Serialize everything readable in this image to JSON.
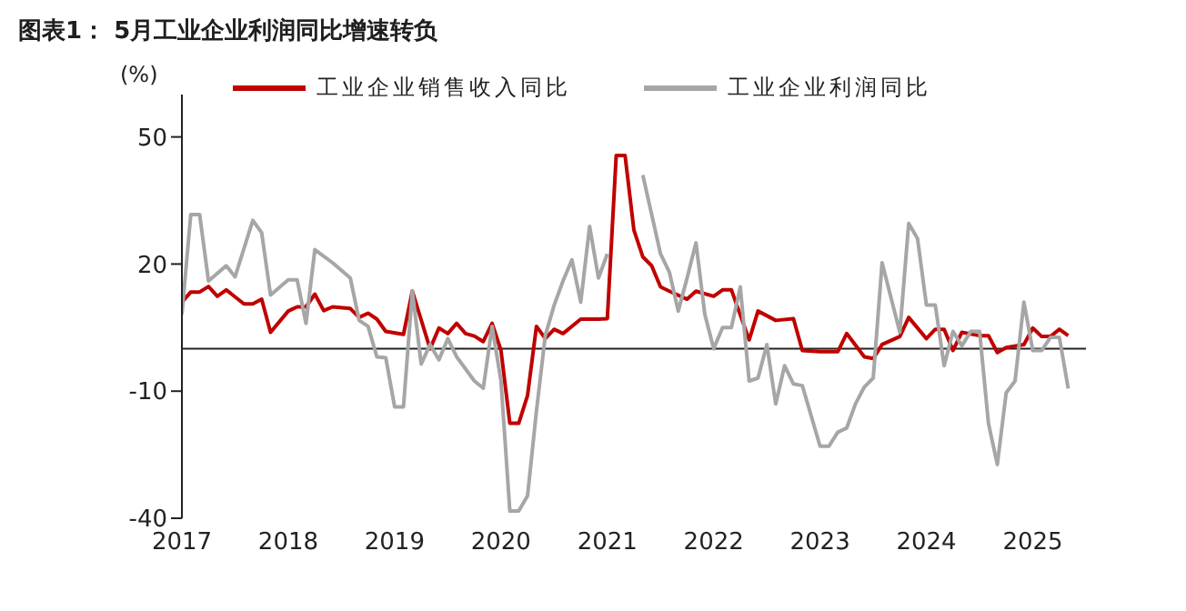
{
  "chart_data": {
    "type": "line",
    "title": "图表1： 5月工业企业利润同比增速转负",
    "ylabel": "(%)",
    "xlim": [
      "2017-01",
      "2025-07"
    ],
    "xticks": [
      {
        "value": "2017-01",
        "label": "2017"
      },
      {
        "value": "2018-01",
        "label": "2018"
      },
      {
        "value": "2019-01",
        "label": "2019"
      },
      {
        "value": "2020-01",
        "label": "2020"
      },
      {
        "value": "2021-01",
        "label": "2021"
      },
      {
        "value": "2022-01",
        "label": "2022"
      },
      {
        "value": "2023-01",
        "label": "2023"
      },
      {
        "value": "2024-01",
        "label": "2024"
      },
      {
        "value": "2025-01",
        "label": "2025"
      }
    ],
    "ylim": [
      -40,
      60
    ],
    "yticks": [
      -40,
      -10,
      20,
      50
    ],
    "grid": false,
    "legend": "top",
    "marker": "none",
    "line_style": "solid",
    "series": [
      {
        "name": "工业企业销售收入同比",
        "color": "#c00000",
        "x": [
          "2017-01",
          "2017-02",
          "2017-03",
          "2017-04",
          "2017-05",
          "2017-06",
          "2017-08",
          "2017-09",
          "2017-10",
          "2017-11",
          "2018-01",
          "2018-02",
          "2018-03",
          "2018-04",
          "2018-05",
          "2018-06",
          "2018-08",
          "2018-09",
          "2018-10",
          "2018-11",
          "2018-12",
          "2019-02",
          "2019-03",
          "2019-05",
          "2019-06",
          "2019-07",
          "2019-08",
          "2019-09",
          "2019-10",
          "2019-11",
          "2019-12",
          "2020-01",
          "2020-02",
          "2020-03",
          "2020-04",
          "2020-05",
          "2020-06",
          "2020-07",
          "2020-08",
          "2020-10",
          "2020-12",
          "2021-01",
          "2021-02",
          "2021-03",
          "2021-04",
          "2021-05",
          "2021-06",
          "2021-07",
          "2021-08",
          "2021-10",
          "2021-11",
          "2022-01",
          "2022-02",
          "2022-03",
          "2022-05",
          "2022-06",
          "2022-08",
          "2022-10",
          "2022-11",
          "2023-01",
          "2023-03",
          "2023-04",
          "2023-06",
          "2023-07",
          "2023-08",
          "2023-10",
          "2023-11",
          "2024-01",
          "2024-02",
          "2024-03",
          "2024-04",
          "2024-05",
          "2024-07",
          "2024-08",
          "2024-09",
          "2024-10",
          "2024-12",
          "2025-01",
          "2025-02",
          "2025-03",
          "2025-04",
          "2025-05"
        ],
        "values": [
          11,
          13.4,
          13.4,
          14.7,
          12.4,
          13.9,
          10.6,
          10.6,
          11.7,
          3.9,
          8.9,
          9.9,
          9.9,
          12.9,
          9,
          9.9,
          9.5,
          7.4,
          8.4,
          7,
          4.1,
          3.4,
          13.6,
          0,
          4.9,
          3.6,
          6,
          3.6,
          3,
          1.7,
          6,
          -0.4,
          -17.6,
          -17.6,
          -11,
          5.3,
          2.4,
          4.6,
          3.6,
          7,
          7,
          7.1,
          45.6,
          45.6,
          28,
          21.7,
          19.6,
          14.6,
          13.6,
          11.7,
          13.6,
          12.4,
          13.9,
          13.9,
          2.1,
          8.9,
          6.7,
          7.1,
          -0.4,
          -0.7,
          -0.7,
          3.6,
          -1.9,
          -2.3,
          1,
          2.9,
          7.4,
          2.4,
          4.6,
          4.6,
          -0.4,
          3.9,
          3.1,
          3.1,
          -0.9,
          0.3,
          1,
          4.9,
          2.9,
          2.9,
          4.6,
          3.1
        ]
      },
      {
        "name": "工业企业利润同比",
        "color": "#a6a6a6",
        "x": [
          "2017-01",
          "2017-02",
          "2017-03",
          "2017-04",
          "2017-06",
          "2017-07",
          "2017-09",
          "2017-10",
          "2017-11",
          "2018-01",
          "2018-02",
          "2018-03",
          "2018-04",
          "2018-06",
          "2018-08",
          "2018-09",
          "2018-10",
          "2018-11",
          "2018-12",
          "2019-01",
          "2019-02",
          "2019-03",
          "2019-04",
          "2019-05",
          "2019-06",
          "2019-07",
          "2019-08",
          "2019-10",
          "2019-11",
          "2019-12",
          "2020-01",
          "2020-02",
          "2020-03",
          "2020-04",
          "2020-05",
          "2020-06",
          "2020-07",
          "2020-08",
          "2020-09",
          "2020-10",
          "2020-11",
          "2020-12",
          "2021-01",
          "2021-02",
          "2021-03",
          "2021-04",
          "2021-05",
          "2021-07",
          "2021-08",
          "2021-09",
          "2021-10",
          "2021-11",
          "2021-12",
          "2022-01",
          "2022-02",
          "2022-03",
          "2022-04",
          "2022-05",
          "2022-06",
          "2022-07",
          "2022-08",
          "2022-09",
          "2022-10",
          "2022-11",
          "2023-01",
          "2023-02",
          "2023-03",
          "2023-04",
          "2023-05",
          "2023-06",
          "2023-07",
          "2023-08",
          "2023-10",
          "2023-11",
          "2023-12",
          "2024-01",
          "2024-02",
          "2024-03",
          "2024-04",
          "2024-05",
          "2024-06",
          "2024-07",
          "2024-08",
          "2024-09",
          "2024-10",
          "2024-11",
          "2024-12",
          "2025-01",
          "2025-02",
          "2025-03",
          "2025-04",
          "2025-05"
        ],
        "values": [
          8.1,
          31.7,
          31.7,
          16,
          19.6,
          17,
          30.3,
          27.4,
          12.7,
          16.3,
          16.3,
          6,
          23.4,
          20.3,
          16.7,
          6.7,
          5.3,
          -1.9,
          -2.1,
          -13.7,
          -13.7,
          13.6,
          -3.6,
          1,
          -2.6,
          2.4,
          -1.9,
          -7.6,
          -9.3,
          5.3,
          -7.6,
          -38.3,
          -38.3,
          -34.7,
          -14.7,
          3.1,
          10.3,
          16,
          21,
          11,
          28.9,
          16.7,
          22.4,
          null,
          null,
          null,
          41,
          22.4,
          18.1,
          8.9,
          16.7,
          25,
          8.1,
          0,
          5,
          5,
          14.6,
          -7.6,
          -6.9,
          1,
          -13,
          -4,
          -8.3,
          -8.7,
          -23,
          -23,
          -19.7,
          -18.7,
          -13,
          -9,
          -6.9,
          20.3,
          3.9,
          29.6,
          26,
          10.3,
          10.3,
          -4,
          4.1,
          0.7,
          4.1,
          4.1,
          -17.6,
          -27.3,
          -10.4,
          -7.6,
          11,
          -0.4,
          -0.4,
          2.7,
          2.7,
          -9.4
        ]
      }
    ]
  }
}
